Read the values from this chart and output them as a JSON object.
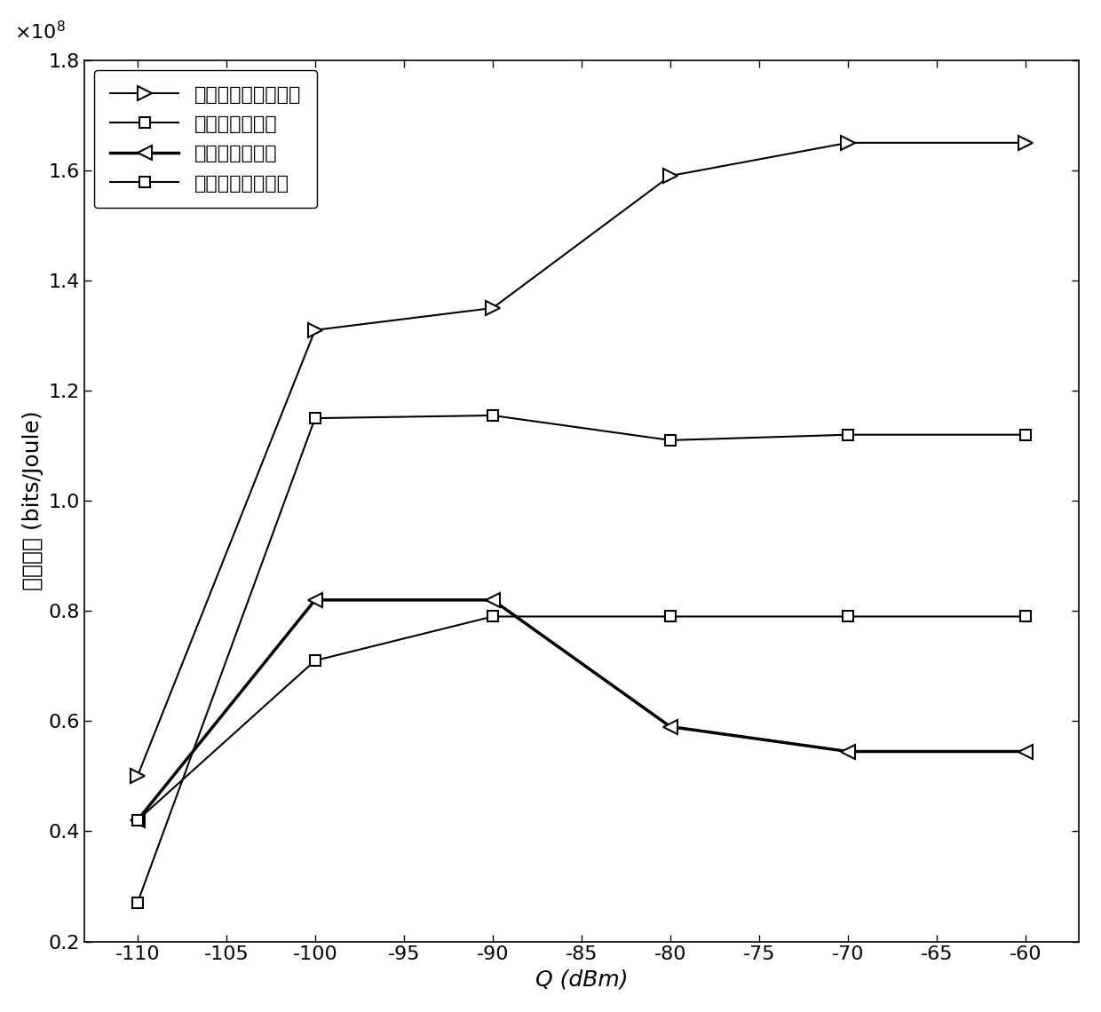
{
  "x": [
    -110,
    -100,
    -90,
    -80,
    -70,
    -60
  ],
  "series": [
    {
      "label": "最大化最小能效方案",
      "y": [
        0.5,
        1.31,
        1.35,
        1.59,
        1.65,
        1.65
      ],
      "marker": ">",
      "markersize": 11,
      "linewidth": 1.5
    },
    {
      "label": "非协作能效方案",
      "y": [
        0.27,
        1.15,
        1.155,
        1.11,
        1.12,
        1.12
      ],
      "marker": "s",
      "markersize": 9,
      "linewidth": 1.5
    },
    {
      "label": "非协作谱效方案",
      "y": [
        0.42,
        0.82,
        0.82,
        0.59,
        0.545,
        0.545
      ],
      "marker": "<",
      "markersize": 11,
      "linewidth": 2.5
    },
    {
      "label": "系统能效最大方案",
      "y": [
        0.42,
        0.71,
        0.79,
        0.79,
        0.79,
        0.79
      ],
      "marker": "s",
      "markersize": 8,
      "linewidth": 1.5
    }
  ],
  "xlim": [
    -113,
    -57
  ],
  "ylim": [
    0.2,
    1.8
  ],
  "xlabel": "Q (dBm)",
  "ylabel": "最小能效 (bits/Joule)",
  "xticks": [
    -110,
    -105,
    -100,
    -95,
    -90,
    -85,
    -80,
    -75,
    -70,
    -65,
    -60
  ],
  "yticks": [
    0.2,
    0.4,
    0.6,
    0.8,
    1.0,
    1.2,
    1.4,
    1.6,
    1.8
  ],
  "color": "black",
  "background": "white"
}
